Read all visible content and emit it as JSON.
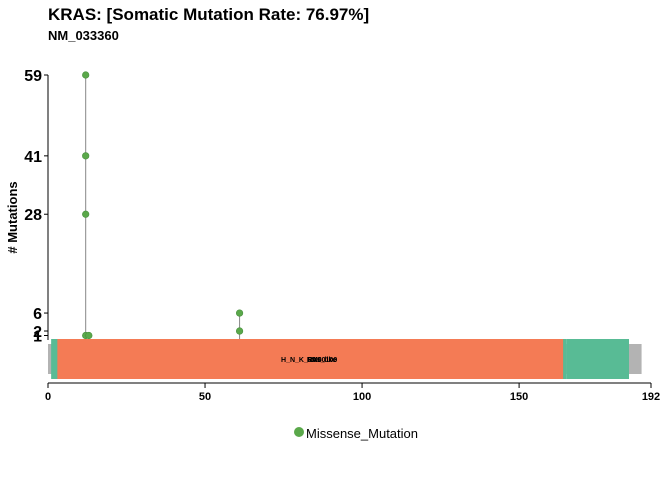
{
  "chart_data": {
    "type": "lollipop",
    "title": "KRAS: [Somatic Mutation Rate: 76.97%]",
    "subtitle": "NM_033360",
    "ylabel": "# Mutations",
    "xlabel": "",
    "xlim": [
      0,
      192
    ],
    "ylim": [
      0,
      59
    ],
    "x_ticks": [
      0,
      50,
      100,
      150,
      192
    ],
    "y_ticks": [
      1,
      2,
      6,
      28,
      41,
      59
    ],
    "grid": false,
    "legend": {
      "position": "bottom",
      "entries": [
        {
          "label": "Missense_Mutation",
          "color": "#5aa84a"
        }
      ]
    },
    "lollipops": [
      {
        "x": 12,
        "y": 59
      },
      {
        "x": 12,
        "y": 41
      },
      {
        "x": 12,
        "y": 28
      },
      {
        "x": 12,
        "y": 1
      },
      {
        "x": 13,
        "y": 1
      },
      {
        "x": 61,
        "y": 6
      },
      {
        "x": 61,
        "y": 2
      }
    ],
    "protein": {
      "start": 0,
      "end": 189,
      "color": "#b3b3b3"
    },
    "domains": [
      {
        "name": "H_N_K_Ras_like",
        "start": 1,
        "end": 165,
        "color": "#58bb95",
        "label_offset": 0
      },
      {
        "name": "RAS",
        "start": 3,
        "end": 164,
        "color": "#f47b55",
        "label_offset": 1
      },
      {
        "name": "SM00100",
        "start": 3,
        "end": 164,
        "color": "#f47b55",
        "label_offset": 3
      },
      {
        "name": "H_N_K_Ras_like_C",
        "start": 165,
        "end": 185,
        "color": "#58bb95",
        "label_offset": 0
      }
    ]
  }
}
